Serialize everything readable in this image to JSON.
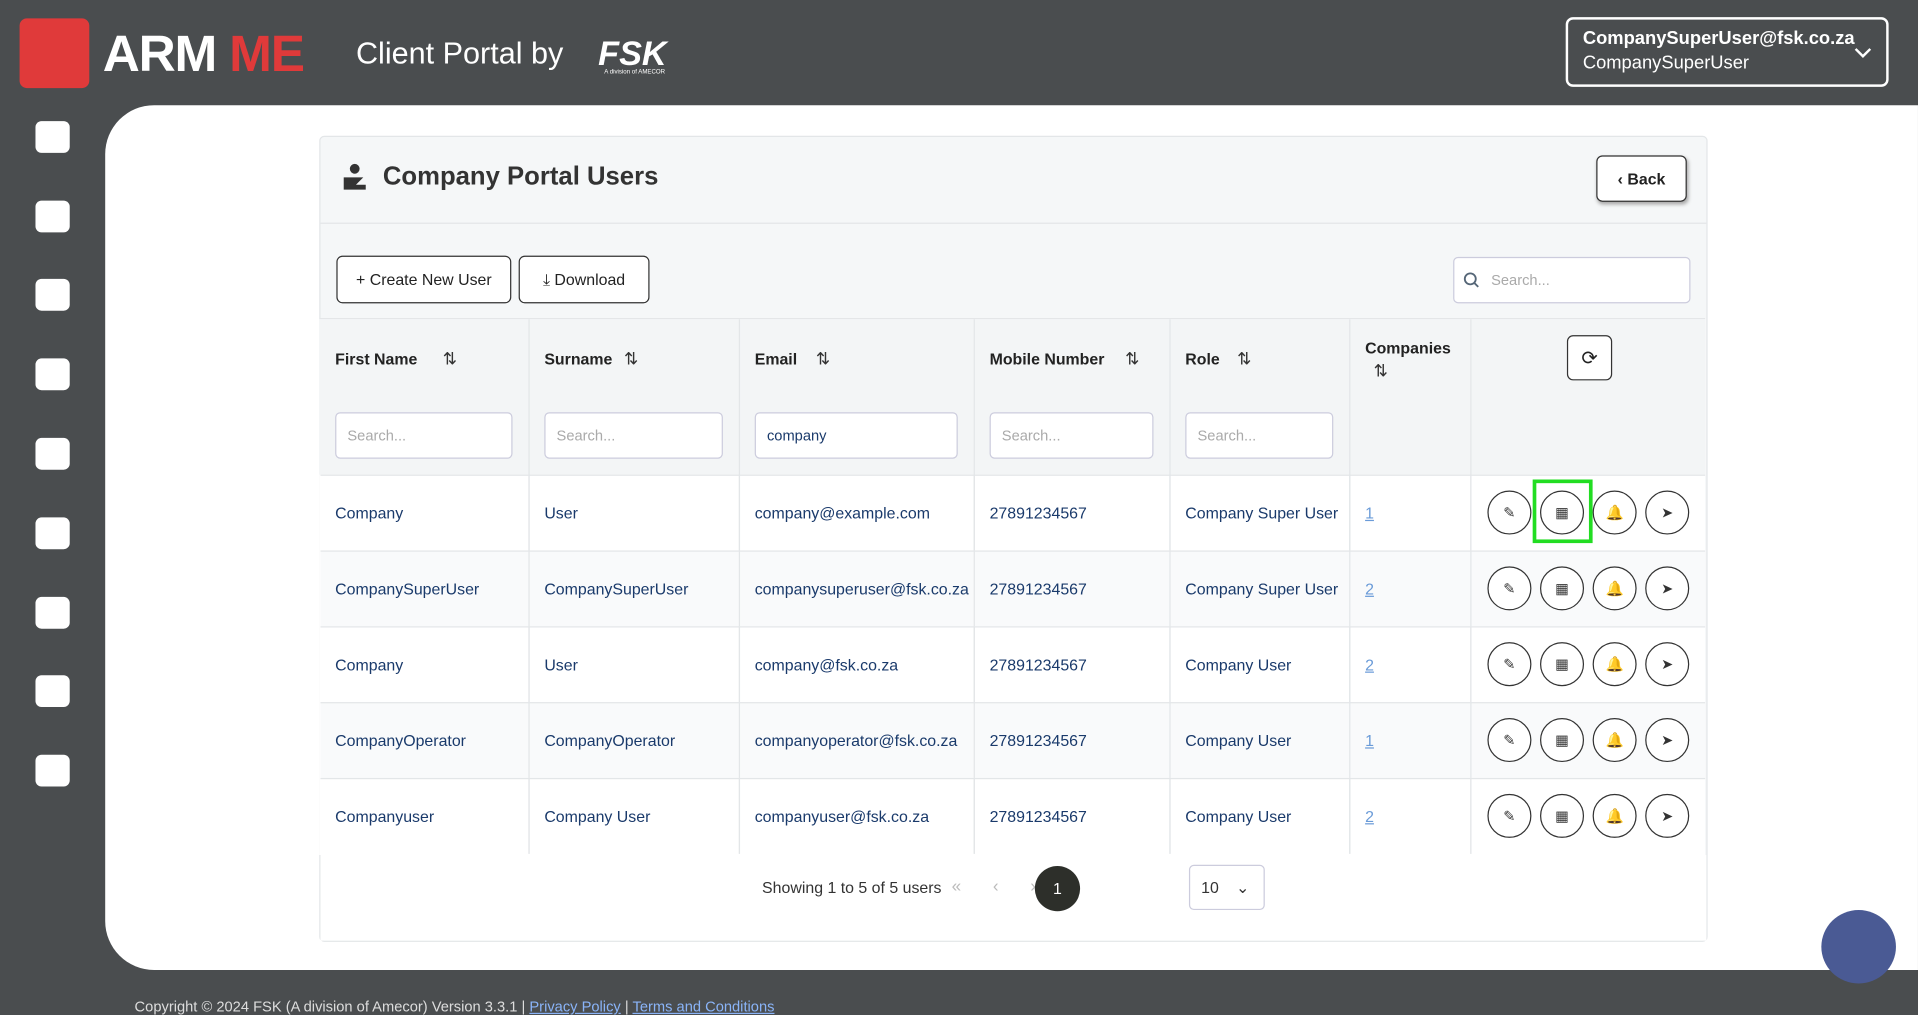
{
  "header": {
    "logo_left": "ARM",
    "logo_right": "ME",
    "portal": "Client Portal by",
    "brand": "FSK",
    "brand_sub": "A division of AMECOR",
    "user_email": "CompanySuperUser@fsk.co.za",
    "user_name": "CompanySuperUser"
  },
  "panel": {
    "title": "Company Portal Users",
    "back": "Back",
    "create": "Create New User",
    "download": "Download",
    "search": "Search..."
  },
  "table": {
    "columns": [
      "First Name",
      "Surname",
      "Email",
      "Mobile Number",
      "Role",
      "Companies"
    ],
    "filters": [
      "Search...",
      "Search...",
      "company",
      "Search...",
      "Search..."
    ],
    "rows": [
      [
        "Company",
        "User",
        "company@example.com",
        "27891234567",
        "Company Super User",
        "1"
      ],
      [
        "CompanySuperUser",
        "CompanySuperUser",
        "companysuperuser@fsk.co.za",
        "27891234567",
        "Company Super User",
        "2"
      ],
      [
        "Company",
        "User",
        "company@fsk.co.za",
        "27891234567",
        "Company User",
        "2"
      ],
      [
        "CompanyOperator",
        "CompanyOperator",
        "companyoperator@fsk.co.za",
        "27891234567",
        "Company User",
        "1"
      ],
      [
        "Companyuser",
        "Company User",
        "companyuser@fsk.co.za",
        "27891234567",
        "Company User",
        "2"
      ]
    ]
  },
  "pagination": {
    "summary": "Showing 1 to 5 of 5 users",
    "page": "1",
    "page_size": "10"
  },
  "footer": {
    "copyright": "Copyright © 2024 FSK (A division of Amecor) Version 3.3.1 |",
    "privacy": "Privacy Policy",
    "sep": "|",
    "terms": "Terms and Conditions"
  }
}
